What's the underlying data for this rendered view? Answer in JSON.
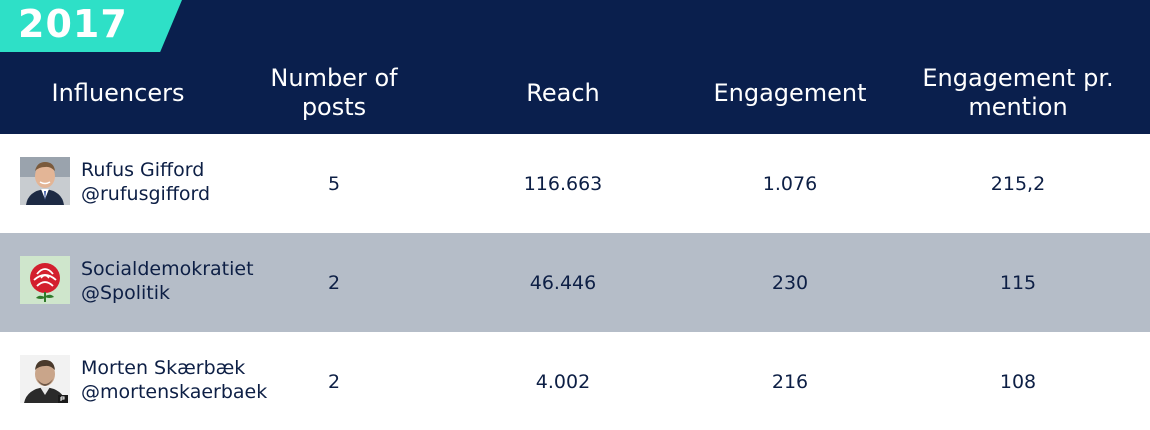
{
  "year": "2017",
  "columns": {
    "influencers": "Influencers",
    "posts_line1": "Number of",
    "posts_line2": "posts",
    "reach": "Reach",
    "engagement": "Engagement",
    "epm_line1": "Engagement pr.",
    "epm_line2": "mention"
  },
  "rows": [
    {
      "name": "Rufus Gifford",
      "handle": "@rufusgifford",
      "posts": "5",
      "reach": "116.663",
      "engagement": "1.076",
      "engagement_per_mention": "215,2",
      "avatar_icon": "portrait-photo-icon"
    },
    {
      "name": "Socialdemokratiet",
      "handle": "@Spolitik",
      "posts": "2",
      "reach": "46.446",
      "engagement": "230",
      "engagement_per_mention": "115",
      "avatar_icon": "red-rose-logo-icon"
    },
    {
      "name": "Morten Skærbæk",
      "handle": "@mortenskaerbaek",
      "posts": "2",
      "reach": "4.002",
      "engagement": "216",
      "engagement_per_mention": "108",
      "avatar_icon": "portrait-photo-icon"
    }
  ],
  "colors": {
    "header_bg": "#0a1f4d",
    "badge_bg": "#2ee0c7",
    "alt_row_bg": "#b5bdc8",
    "text": "#0d1f45"
  }
}
